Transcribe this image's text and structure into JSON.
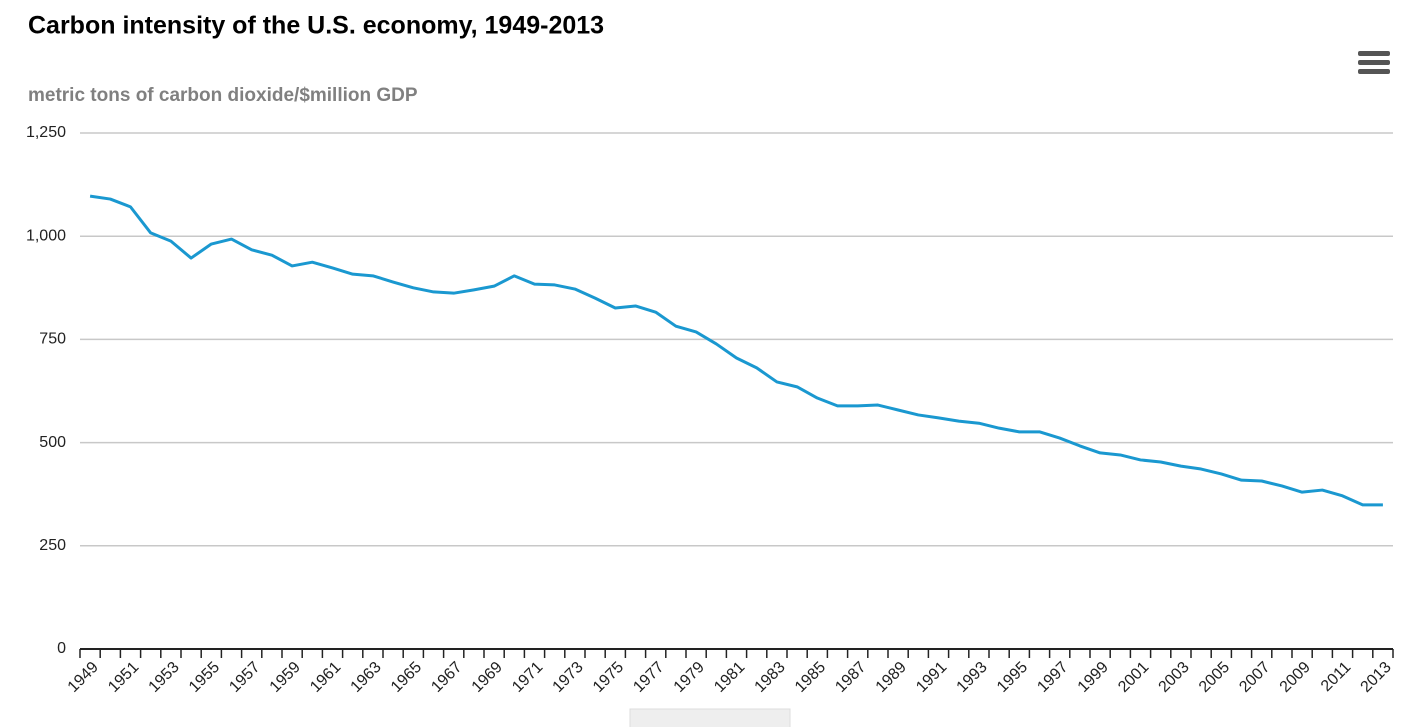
{
  "chart_data": {
    "type": "line",
    "title": "Carbon intensity of the U.S. economy, 1949-2013",
    "subtitle": "metric tons of carbon dioxide/$million GDP",
    "categories": [
      "1949",
      null,
      "1951",
      null,
      "1953",
      null,
      "1955",
      null,
      "1957",
      null,
      "1959",
      null,
      "1961",
      null,
      "1963",
      null,
      "1965",
      null,
      "1967",
      null,
      "1969",
      null,
      "1971",
      null,
      "1973",
      null,
      "1975",
      null,
      "1977",
      null,
      "1979",
      null,
      "1981",
      null,
      "1983",
      null,
      "1985",
      null,
      "1987",
      null,
      "1989",
      null,
      "1991",
      null,
      "1993",
      null,
      "1995",
      null,
      "1997",
      null,
      "1999",
      null,
      "2001",
      null,
      "2003",
      null,
      "2005",
      null,
      "2007",
      null,
      "2009",
      null,
      "2011",
      null,
      "2013"
    ],
    "values": [
      1097,
      1090,
      1071,
      1008,
      988,
      947,
      981,
      993,
      967,
      954,
      928,
      937,
      923,
      908,
      904,
      889,
      875,
      865,
      862,
      870,
      879,
      904,
      884,
      882,
      872,
      850,
      826,
      831,
      816,
      782,
      768,
      739,
      705,
      681,
      647,
      635,
      608,
      589,
      589,
      591,
      579,
      567,
      560,
      552,
      547,
      535,
      526,
      526,
      511,
      492,
      475,
      470,
      458,
      453,
      443,
      436,
      424,
      409,
      407,
      395,
      380,
      385,
      371,
      349,
      349
    ],
    "color": "#1a98d0",
    "ylim": [
      0,
      1250
    ],
    "yticks": [
      0,
      250,
      500,
      750,
      {
        "value": 1000,
        "label": "1,000"
      },
      {
        "value": 1250,
        "label": "1,250"
      }
    ],
    "grid": true
  }
}
